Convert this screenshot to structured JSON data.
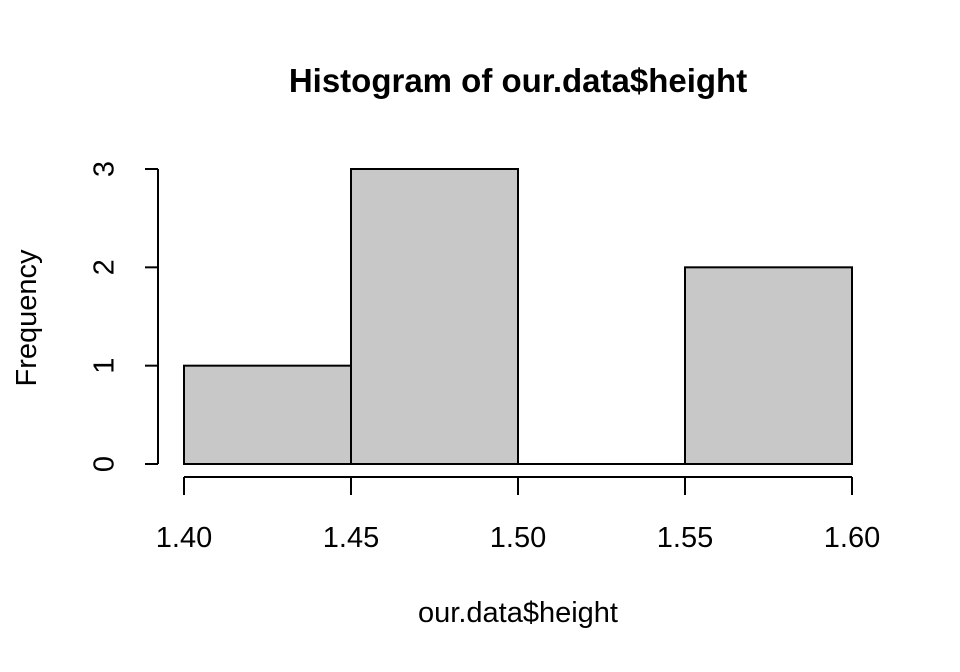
{
  "chart_data": {
    "type": "bar",
    "title": "Histogram of our.data$height",
    "xlabel": "our.data$height",
    "ylabel": "Frequency",
    "breaks": [
      1.4,
      1.45,
      1.5,
      1.55,
      1.6
    ],
    "values": [
      1,
      3,
      0,
      2
    ],
    "xlim": [
      1.4,
      1.6
    ],
    "ylim": [
      0,
      3
    ],
    "x_ticks": [
      "1.40",
      "1.45",
      "1.50",
      "1.55",
      "1.60"
    ],
    "y_ticks": [
      "0",
      "1",
      "2",
      "3"
    ],
    "bar_color": "#c8c8c8",
    "grid": false
  }
}
